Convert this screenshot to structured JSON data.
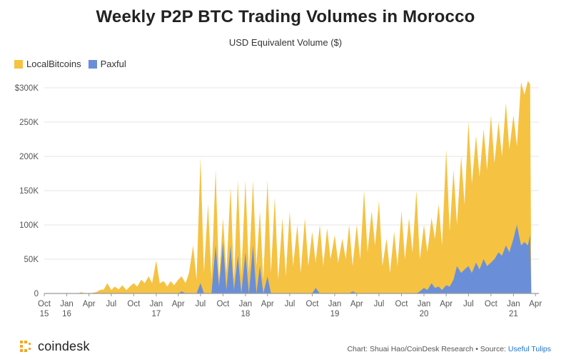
{
  "chart_data": {
    "type": "area",
    "stacked": true,
    "title": "Weekly P2P BTC Trading Volumes in Morocco",
    "subtitle": "USD Equivalent Volume ($)",
    "ylim": [
      0,
      300000
    ],
    "yticks": [
      0,
      50000,
      100000,
      150000,
      200000,
      250000,
      300000
    ],
    "ytick_labels": [
      "0",
      "50K",
      "100K",
      "150K",
      "200K",
      "250K",
      "$300K"
    ],
    "xlim": [
      "2015-10-01",
      "2021-04-15"
    ],
    "xticks": [
      {
        "date": "2015-10-01",
        "label": "Oct",
        "sub": "15"
      },
      {
        "date": "2016-01-01",
        "label": "Jan",
        "sub": "16"
      },
      {
        "date": "2016-04-01",
        "label": "Apr",
        "sub": ""
      },
      {
        "date": "2016-07-01",
        "label": "Jul",
        "sub": ""
      },
      {
        "date": "2016-10-01",
        "label": "Oct",
        "sub": ""
      },
      {
        "date": "2017-01-01",
        "label": "Jan",
        "sub": "17"
      },
      {
        "date": "2017-04-01",
        "label": "Apr",
        "sub": ""
      },
      {
        "date": "2017-07-01",
        "label": "Jul",
        "sub": ""
      },
      {
        "date": "2017-10-01",
        "label": "Oct",
        "sub": ""
      },
      {
        "date": "2018-01-01",
        "label": "Jan",
        "sub": "18"
      },
      {
        "date": "2018-04-01",
        "label": "Apr",
        "sub": ""
      },
      {
        "date": "2018-07-01",
        "label": "Jul",
        "sub": ""
      },
      {
        "date": "2018-10-01",
        "label": "Oct",
        "sub": ""
      },
      {
        "date": "2019-01-01",
        "label": "Jan",
        "sub": "19"
      },
      {
        "date": "2019-04-01",
        "label": "Apr",
        "sub": ""
      },
      {
        "date": "2019-07-01",
        "label": "Jul",
        "sub": ""
      },
      {
        "date": "2019-10-01",
        "label": "Oct",
        "sub": ""
      },
      {
        "date": "2020-01-01",
        "label": "Jan",
        "sub": "20"
      },
      {
        "date": "2020-04-01",
        "label": "Apr",
        "sub": ""
      },
      {
        "date": "2020-07-01",
        "label": "Jul",
        "sub": ""
      },
      {
        "date": "2020-10-01",
        "label": "Oct",
        "sub": ""
      },
      {
        "date": "2021-01-01",
        "label": "Jan",
        "sub": "21"
      },
      {
        "date": "2021-04-01",
        "label": "Apr",
        "sub": ""
      }
    ],
    "grid": true,
    "legend_position": "top-left",
    "series": [
      {
        "name": "LocalBitcoins",
        "color": "#f5c242",
        "points": [
          [
            "2015-10-01",
            0
          ],
          [
            "2016-02-15",
            0
          ],
          [
            "2016-03-01",
            2000
          ],
          [
            "2016-03-15",
            0
          ],
          [
            "2016-04-01",
            0
          ],
          [
            "2016-05-01",
            2000
          ],
          [
            "2016-05-15",
            5000
          ],
          [
            "2016-06-01",
            6000
          ],
          [
            "2016-06-15",
            15000
          ],
          [
            "2016-07-01",
            5000
          ],
          [
            "2016-07-15",
            10000
          ],
          [
            "2016-08-01",
            6000
          ],
          [
            "2016-08-15",
            12000
          ],
          [
            "2016-09-01",
            5000
          ],
          [
            "2016-09-15",
            10000
          ],
          [
            "2016-10-01",
            15000
          ],
          [
            "2016-10-15",
            10000
          ],
          [
            "2016-11-01",
            20000
          ],
          [
            "2016-11-15",
            15000
          ],
          [
            "2016-12-01",
            25000
          ],
          [
            "2016-12-15",
            15000
          ],
          [
            "2017-01-01",
            48000
          ],
          [
            "2017-01-15",
            15000
          ],
          [
            "2017-02-01",
            18000
          ],
          [
            "2017-02-15",
            10000
          ],
          [
            "2017-03-01",
            18000
          ],
          [
            "2017-03-15",
            12000
          ],
          [
            "2017-04-01",
            20000
          ],
          [
            "2017-04-15",
            25000
          ],
          [
            "2017-05-01",
            15000
          ],
          [
            "2017-05-15",
            30000
          ],
          [
            "2017-06-01",
            70000
          ],
          [
            "2017-06-15",
            20000
          ],
          [
            "2017-07-01",
            198000
          ],
          [
            "2017-07-15",
            30000
          ],
          [
            "2017-08-01",
            130000
          ],
          [
            "2017-08-15",
            20000
          ],
          [
            "2017-09-01",
            180000
          ],
          [
            "2017-09-15",
            20000
          ],
          [
            "2017-10-01",
            110000
          ],
          [
            "2017-10-15",
            30000
          ],
          [
            "2017-11-01",
            155000
          ],
          [
            "2017-11-15",
            20000
          ],
          [
            "2017-12-01",
            165000
          ],
          [
            "2017-12-15",
            25000
          ],
          [
            "2018-01-01",
            165000
          ],
          [
            "2018-01-15",
            30000
          ],
          [
            "2018-02-01",
            165000
          ],
          [
            "2018-02-15",
            40000
          ],
          [
            "2018-03-01",
            120000
          ],
          [
            "2018-03-15",
            20000
          ],
          [
            "2018-04-01",
            165000
          ],
          [
            "2018-04-15",
            30000
          ],
          [
            "2018-05-01",
            140000
          ],
          [
            "2018-05-15",
            20000
          ],
          [
            "2018-06-01",
            110000
          ],
          [
            "2018-06-15",
            25000
          ],
          [
            "2018-07-01",
            120000
          ],
          [
            "2018-07-15",
            40000
          ],
          [
            "2018-08-01",
            100000
          ],
          [
            "2018-08-15",
            30000
          ],
          [
            "2018-09-01",
            110000
          ],
          [
            "2018-09-15",
            40000
          ],
          [
            "2018-10-01",
            90000
          ],
          [
            "2018-10-15",
            45000
          ],
          [
            "2018-11-01",
            100000
          ],
          [
            "2018-11-15",
            40000
          ],
          [
            "2018-12-01",
            95000
          ],
          [
            "2018-12-15",
            50000
          ],
          [
            "2019-01-01",
            85000
          ],
          [
            "2019-01-15",
            45000
          ],
          [
            "2019-02-01",
            80000
          ],
          [
            "2019-02-15",
            50000
          ],
          [
            "2019-03-01",
            100000
          ],
          [
            "2019-03-15",
            40000
          ],
          [
            "2019-04-01",
            100000
          ],
          [
            "2019-04-15",
            50000
          ],
          [
            "2019-05-01",
            150000
          ],
          [
            "2019-05-15",
            60000
          ],
          [
            "2019-06-01",
            120000
          ],
          [
            "2019-06-15",
            70000
          ],
          [
            "2019-07-01",
            135000
          ],
          [
            "2019-07-15",
            40000
          ],
          [
            "2019-08-01",
            80000
          ],
          [
            "2019-08-15",
            30000
          ],
          [
            "2019-09-01",
            90000
          ],
          [
            "2019-09-15",
            40000
          ],
          [
            "2019-10-01",
            120000
          ],
          [
            "2019-10-15",
            50000
          ],
          [
            "2019-11-01",
            110000
          ],
          [
            "2019-11-15",
            60000
          ],
          [
            "2019-12-01",
            150000
          ],
          [
            "2019-12-15",
            50000
          ],
          [
            "2020-01-01",
            100000
          ],
          [
            "2020-01-15",
            60000
          ],
          [
            "2020-02-01",
            110000
          ],
          [
            "2020-02-15",
            80000
          ],
          [
            "2020-03-01",
            130000
          ],
          [
            "2020-03-15",
            70000
          ],
          [
            "2020-04-01",
            210000
          ],
          [
            "2020-04-15",
            90000
          ],
          [
            "2020-05-01",
            180000
          ],
          [
            "2020-05-15",
            100000
          ],
          [
            "2020-06-01",
            200000
          ],
          [
            "2020-06-15",
            130000
          ],
          [
            "2020-07-01",
            250000
          ],
          [
            "2020-07-15",
            160000
          ],
          [
            "2020-08-01",
            230000
          ],
          [
            "2020-08-15",
            170000
          ],
          [
            "2020-09-01",
            240000
          ],
          [
            "2020-09-15",
            180000
          ],
          [
            "2020-10-01",
            260000
          ],
          [
            "2020-10-15",
            190000
          ],
          [
            "2020-11-01",
            250000
          ],
          [
            "2020-11-15",
            200000
          ],
          [
            "2020-12-01",
            278000
          ],
          [
            "2020-12-15",
            210000
          ],
          [
            "2021-01-01",
            260000
          ],
          [
            "2021-01-15",
            215000
          ],
          [
            "2021-02-01",
            308000
          ],
          [
            "2021-02-15",
            290000
          ],
          [
            "2021-03-01",
            310000
          ],
          [
            "2021-03-10",
            305000
          ],
          [
            "2021-03-15",
            0
          ]
        ]
      },
      {
        "name": "Paxful",
        "color": "#6a8fd8",
        "points": [
          [
            "2015-10-01",
            0
          ],
          [
            "2017-04-01",
            0
          ],
          [
            "2017-04-15",
            3000
          ],
          [
            "2017-05-01",
            0
          ],
          [
            "2017-06-15",
            0
          ],
          [
            "2017-07-01",
            15000
          ],
          [
            "2017-07-15",
            0
          ],
          [
            "2017-08-15",
            0
          ],
          [
            "2017-09-01",
            70000
          ],
          [
            "2017-09-15",
            10000
          ],
          [
            "2017-10-01",
            75000
          ],
          [
            "2017-10-15",
            5000
          ],
          [
            "2017-11-01",
            70000
          ],
          [
            "2017-11-15",
            5000
          ],
          [
            "2017-12-01",
            55000
          ],
          [
            "2017-12-15",
            0
          ],
          [
            "2018-01-01",
            60000
          ],
          [
            "2018-01-15",
            0
          ],
          [
            "2018-02-01",
            70000
          ],
          [
            "2018-02-15",
            0
          ],
          [
            "2018-03-01",
            40000
          ],
          [
            "2018-03-15",
            0
          ],
          [
            "2018-04-01",
            25000
          ],
          [
            "2018-04-15",
            0
          ],
          [
            "2018-06-01",
            0
          ],
          [
            "2018-10-01",
            0
          ],
          [
            "2018-10-15",
            8000
          ],
          [
            "2018-11-01",
            0
          ],
          [
            "2019-03-01",
            0
          ],
          [
            "2019-03-15",
            3000
          ],
          [
            "2019-04-01",
            0
          ],
          [
            "2019-12-01",
            0
          ],
          [
            "2019-12-15",
            3000
          ],
          [
            "2020-01-01",
            8000
          ],
          [
            "2020-01-15",
            5000
          ],
          [
            "2020-02-01",
            15000
          ],
          [
            "2020-02-15",
            8000
          ],
          [
            "2020-03-01",
            10000
          ],
          [
            "2020-03-15",
            5000
          ],
          [
            "2020-04-01",
            12000
          ],
          [
            "2020-04-15",
            10000
          ],
          [
            "2020-05-01",
            20000
          ],
          [
            "2020-05-15",
            40000
          ],
          [
            "2020-06-01",
            30000
          ],
          [
            "2020-06-15",
            35000
          ],
          [
            "2020-07-01",
            40000
          ],
          [
            "2020-07-15",
            30000
          ],
          [
            "2020-08-01",
            45000
          ],
          [
            "2020-08-15",
            35000
          ],
          [
            "2020-09-01",
            50000
          ],
          [
            "2020-09-15",
            40000
          ],
          [
            "2020-10-01",
            45000
          ],
          [
            "2020-10-15",
            50000
          ],
          [
            "2020-11-01",
            60000
          ],
          [
            "2020-11-15",
            55000
          ],
          [
            "2020-12-01",
            70000
          ],
          [
            "2020-12-15",
            60000
          ],
          [
            "2021-01-01",
            80000
          ],
          [
            "2021-01-15",
            100000
          ],
          [
            "2021-02-01",
            70000
          ],
          [
            "2021-02-15",
            75000
          ],
          [
            "2021-03-01",
            70000
          ],
          [
            "2021-03-10",
            85000
          ],
          [
            "2021-03-15",
            0
          ]
        ]
      }
    ]
  },
  "footer": {
    "logo_text": "coindesk",
    "credit": "Chart: Shuai Hao/CoinDesk Research • Source:",
    "credit_link": "Useful Tulips"
  }
}
